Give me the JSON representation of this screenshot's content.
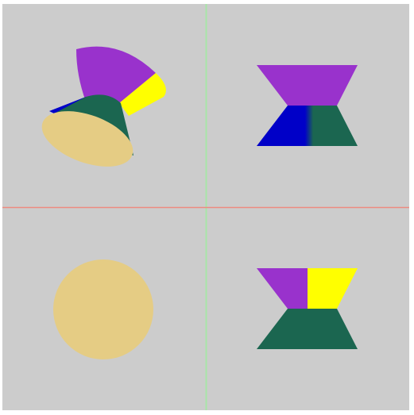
{
  "scene": {
    "background_color": "#cccccc",
    "page_color": "#ffffff",
    "axis_colors": {
      "vertical_divider": "#a8e6a8",
      "horizontal_divider": "#ee8a80"
    },
    "views": [
      {
        "name": "perspective",
        "panel": "top-left"
      },
      {
        "name": "front",
        "panel": "top-right"
      },
      {
        "name": "top",
        "panel": "bottom-left"
      },
      {
        "name": "side",
        "panel": "bottom-right"
      }
    ],
    "face_colors": {
      "purple": "#9932cc",
      "yellow": "#ffff00",
      "green": "#1b6650",
      "blue": "#0000c8",
      "tan": "#e5cc84"
    }
  }
}
